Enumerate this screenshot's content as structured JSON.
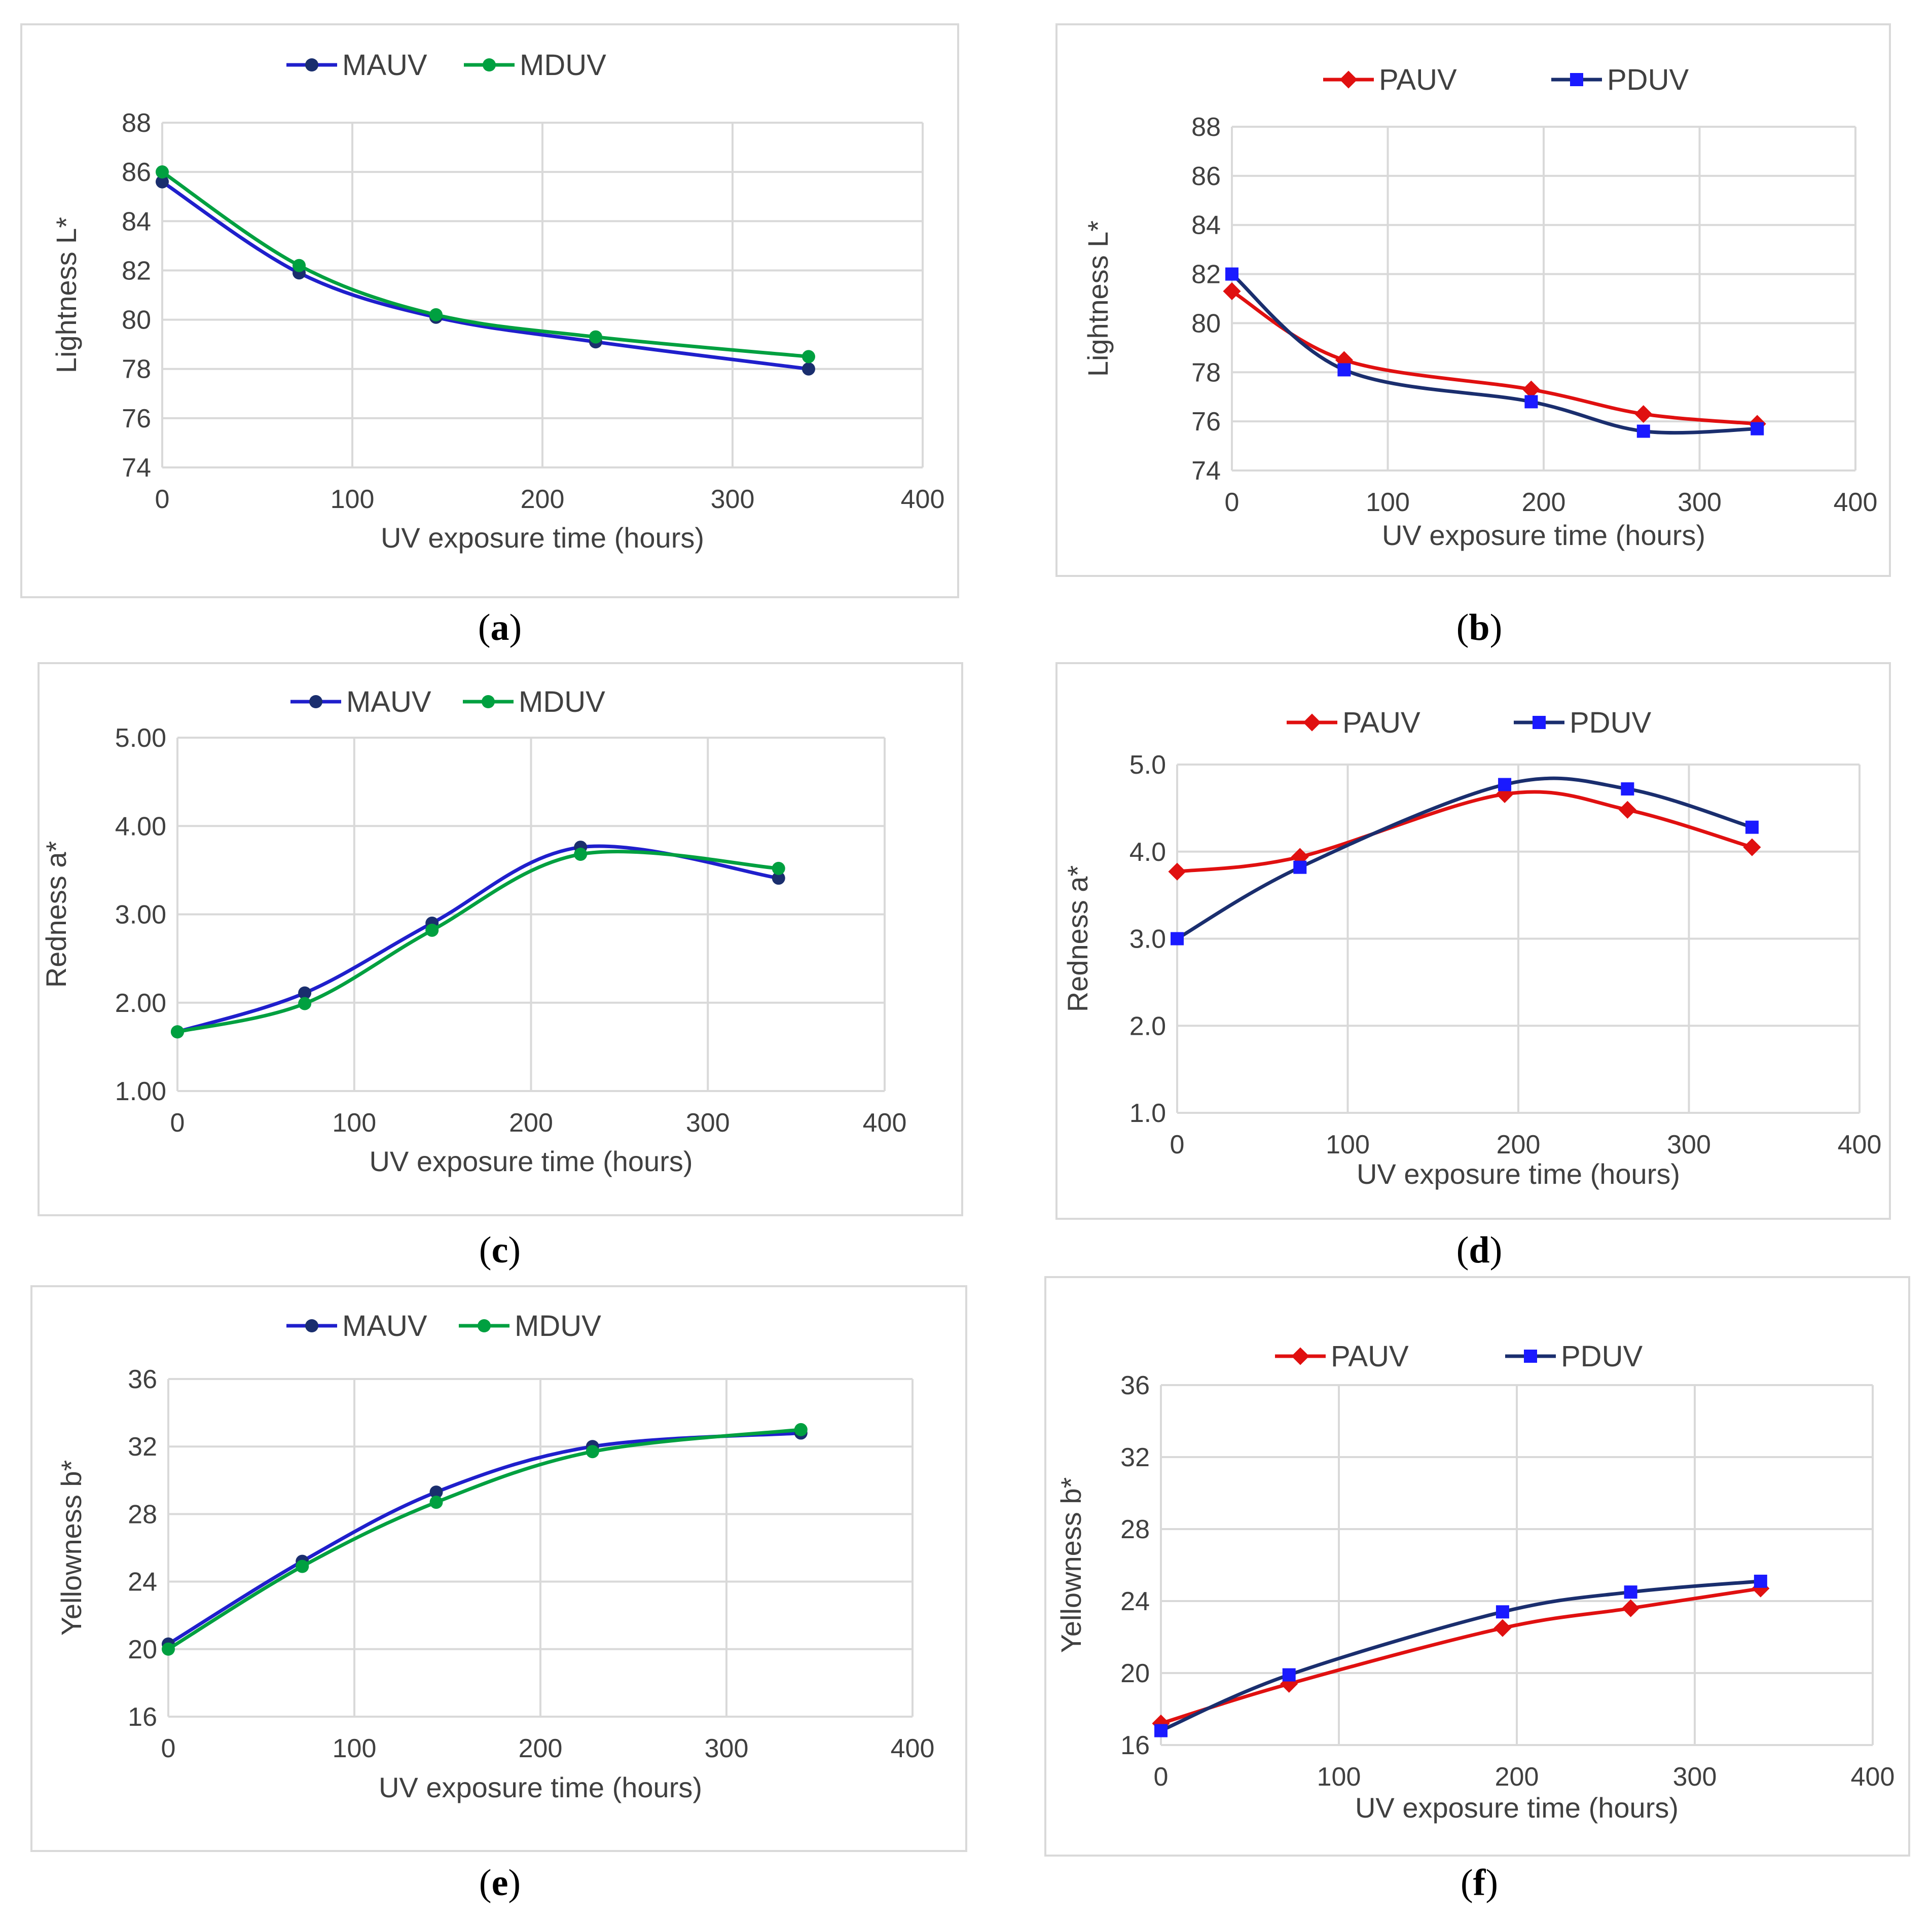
{
  "colors": {
    "MAUV": "#1f1fcc",
    "MAUV_marker": "#1a2e6e",
    "MDUV": "#00a040",
    "MDUV_marker": "#00a040",
    "MDUV_dark": "#1e8c1e",
    "PAUV": "#e01010",
    "PDUV_line": "#1a2e6e",
    "PDUV_marker": "#1a1aff"
  },
  "chart_data": [
    {
      "id": "a",
      "type": "line",
      "caption": "a",
      "xlabel": "UV exposure time (hours)",
      "ylabel": "Lightness L*",
      "xlim": [
        0,
        400
      ],
      "ylim": [
        74,
        88
      ],
      "xticks": [
        "0",
        "100",
        "200",
        "300",
        "400"
      ],
      "yticks": [
        "74",
        "76",
        "78",
        "80",
        "82",
        "84",
        "86",
        "88"
      ],
      "legend": [
        "MAUV",
        "MDUV"
      ],
      "series": [
        {
          "name": "MAUV",
          "x": [
            0,
            72,
            144,
            228,
            340
          ],
          "values": [
            85.6,
            81.9,
            80.1,
            79.1,
            78.0
          ]
        },
        {
          "name": "MDUV",
          "x": [
            0,
            72,
            144,
            228,
            340
          ],
          "values": [
            86.0,
            82.2,
            80.2,
            79.3,
            78.5
          ]
        }
      ]
    },
    {
      "id": "b",
      "type": "line",
      "caption": "b",
      "xlabel": "UV exposure time (hours)",
      "ylabel": "Lightness L*",
      "xlim": [
        0,
        400
      ],
      "ylim": [
        74,
        88
      ],
      "xticks": [
        "0",
        "100",
        "200",
        "300",
        "400"
      ],
      "yticks": [
        "74",
        "76",
        "78",
        "80",
        "82",
        "84",
        "86",
        "88"
      ],
      "legend": [
        "PAUV",
        "PDUV"
      ],
      "series": [
        {
          "name": "PAUV",
          "x": [
            0,
            72,
            192,
            264,
            337
          ],
          "values": [
            81.3,
            78.5,
            77.3,
            76.3,
            75.9
          ]
        },
        {
          "name": "PDUV",
          "x": [
            0,
            72,
            192,
            264,
            337
          ],
          "values": [
            82.0,
            78.1,
            76.8,
            75.6,
            75.7
          ]
        }
      ]
    },
    {
      "id": "c",
      "type": "line",
      "caption": "c",
      "xlabel": "UV exposure time (hours)",
      "ylabel": "Redness a*",
      "xlim": [
        0,
        400
      ],
      "ylim": [
        1.0,
        5.0
      ],
      "xticks": [
        "0",
        "100",
        "200",
        "300",
        "400"
      ],
      "yticks": [
        "1.00",
        "2.00",
        "3.00",
        "4.00",
        "5.00"
      ],
      "legend": [
        "MAUV",
        "MDUV"
      ],
      "series": [
        {
          "name": "MAUV",
          "x": [
            0,
            72,
            144,
            228,
            340
          ],
          "values": [
            1.67,
            2.11,
            2.9,
            3.76,
            3.41
          ]
        },
        {
          "name": "MDUV",
          "x": [
            0,
            72,
            144,
            228,
            340
          ],
          "values": [
            1.67,
            1.99,
            2.82,
            3.68,
            3.52
          ]
        }
      ]
    },
    {
      "id": "d",
      "type": "line",
      "caption": "d",
      "xlabel": "UV exposure time (hours)",
      "ylabel": "Redness a*",
      "xlim": [
        0,
        400
      ],
      "ylim": [
        1.0,
        5.0
      ],
      "xticks": [
        "0",
        "100",
        "200",
        "300",
        "400"
      ],
      "yticks": [
        "1.0",
        "2.0",
        "3.0",
        "4.0",
        "5.0"
      ],
      "legend": [
        "PAUV",
        "PDUV"
      ],
      "series": [
        {
          "name": "PAUV",
          "x": [
            0,
            72,
            192,
            264,
            337
          ],
          "values": [
            3.77,
            3.94,
            4.66,
            4.48,
            4.05
          ]
        },
        {
          "name": "PDUV",
          "x": [
            0,
            72,
            192,
            264,
            337
          ],
          "values": [
            3.0,
            3.82,
            4.77,
            4.72,
            4.28
          ]
        }
      ]
    },
    {
      "id": "e",
      "type": "line",
      "caption": "e",
      "xlabel": "UV exposure time (hours)",
      "ylabel": "Yellowness b*",
      "xlim": [
        0,
        400
      ],
      "ylim": [
        16,
        36
      ],
      "xticks": [
        "0",
        "100",
        "200",
        "300",
        "400"
      ],
      "yticks": [
        "16",
        "20",
        "24",
        "28",
        "32",
        "36"
      ],
      "legend": [
        "MAUV",
        "MDUV"
      ],
      "series": [
        {
          "name": "MAUV",
          "x": [
            0,
            72,
            144,
            228,
            340
          ],
          "values": [
            20.3,
            25.2,
            29.3,
            32.0,
            32.8
          ]
        },
        {
          "name": "MDUV",
          "x": [
            0,
            72,
            144,
            228,
            340
          ],
          "values": [
            20.0,
            24.9,
            28.7,
            31.7,
            33.0
          ]
        }
      ]
    },
    {
      "id": "f",
      "type": "line",
      "caption": "f",
      "xlabel": "UV exposure time (hours)",
      "ylabel": "Yellowness b*",
      "xlim": [
        0,
        400
      ],
      "ylim": [
        16,
        36
      ],
      "xticks": [
        "0",
        "100",
        "200",
        "300",
        "400"
      ],
      "yticks": [
        "16",
        "20",
        "24",
        "28",
        "32",
        "36"
      ],
      "legend": [
        "PAUV",
        "PDUV"
      ],
      "series": [
        {
          "name": "PAUV",
          "x": [
            0,
            72,
            192,
            264,
            337
          ],
          "values": [
            17.2,
            19.4,
            22.5,
            23.6,
            24.7
          ]
        },
        {
          "name": "PDUV",
          "x": [
            0,
            72,
            192,
            264,
            337
          ],
          "values": [
            16.8,
            19.9,
            23.4,
            24.5,
            25.1
          ]
        }
      ]
    }
  ]
}
